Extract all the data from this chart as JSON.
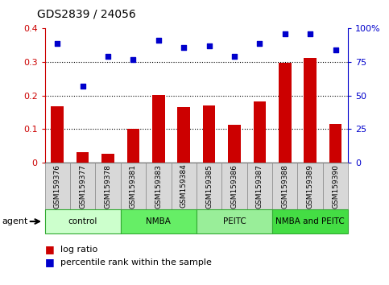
{
  "title": "GDS2839 / 24056",
  "categories": [
    "GSM159376",
    "GSM159377",
    "GSM159378",
    "GSM159381",
    "GSM159383",
    "GSM159384",
    "GSM159385",
    "GSM159386",
    "GSM159387",
    "GSM159388",
    "GSM159389",
    "GSM159390"
  ],
  "log_ratio": [
    0.168,
    0.03,
    0.025,
    0.101,
    0.201,
    0.165,
    0.17,
    0.113,
    0.181,
    0.297,
    0.312,
    0.114
  ],
  "percentile_rank": [
    89,
    57,
    79,
    77,
    91,
    86,
    87,
    79,
    89,
    96,
    96,
    84
  ],
  "groups": [
    {
      "label": "control",
      "start": 0,
      "end": 2,
      "color": "#ccffcc"
    },
    {
      "label": "NMBA",
      "start": 3,
      "end": 5,
      "color": "#66ee66"
    },
    {
      "label": "PEITC",
      "start": 6,
      "end": 8,
      "color": "#99ee99"
    },
    {
      "label": "NMBA and PEITC",
      "start": 9,
      "end": 11,
      "color": "#44dd44"
    }
  ],
  "bar_color": "#cc0000",
  "dot_color": "#0000cc",
  "ylim_left": [
    0,
    0.4
  ],
  "ylim_right": [
    0,
    100
  ],
  "yticks_left": [
    0,
    0.1,
    0.2,
    0.3,
    0.4
  ],
  "yticks_right": [
    0,
    25,
    50,
    75,
    100
  ],
  "left_axis_color": "#cc0000",
  "right_axis_color": "#0000cc",
  "title_fontsize": 10,
  "bar_width": 0.5,
  "dot_size": 20,
  "grid_linestyle": "dotted",
  "grid_linewidth": 0.8,
  "xlabel_fontsize": 6.5,
  "group_fontsize": 7.5,
  "legend_fontsize": 8,
  "agent_fontsize": 8
}
